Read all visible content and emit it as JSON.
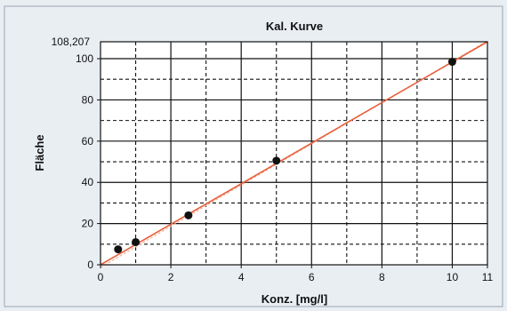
{
  "chart_data": {
    "type": "scatter",
    "title": "Kal. Kurve",
    "xlabel": "Konz. [mg/l]",
    "ylabel": "Fläche",
    "xlim": [
      0,
      11
    ],
    "ylim": [
      0,
      108.207
    ],
    "y_max_label": "108,207",
    "x_ticks": [
      "0",
      "2",
      "4",
      "6",
      "8",
      "10",
      "11"
    ],
    "x_tick_values": [
      0,
      2,
      4,
      6,
      8,
      10,
      11
    ],
    "y_ticks": [
      "0",
      "20",
      "40",
      "60",
      "80",
      "100"
    ],
    "y_tick_values": [
      0,
      20,
      40,
      60,
      80,
      100
    ],
    "grid_x_minor": [
      1,
      3,
      5,
      7,
      9
    ],
    "grid_y_minor": [
      10,
      30,
      50,
      70,
      90
    ],
    "grid": true,
    "series": [
      {
        "type": "scatter",
        "x": [
          0.5,
          1,
          2.5,
          5,
          10
        ],
        "y": [
          7.5,
          11,
          24,
          50.5,
          98.5
        ]
      },
      {
        "type": "line",
        "x": [
          0,
          11
        ],
        "y": [
          0,
          108.207
        ]
      }
    ],
    "colors": {
      "points": "#111111",
      "fit_line": "#e8603c",
      "fit_dashed": "#f2b39a",
      "panel": "#ffffff",
      "background": "#e9eef3"
    }
  }
}
